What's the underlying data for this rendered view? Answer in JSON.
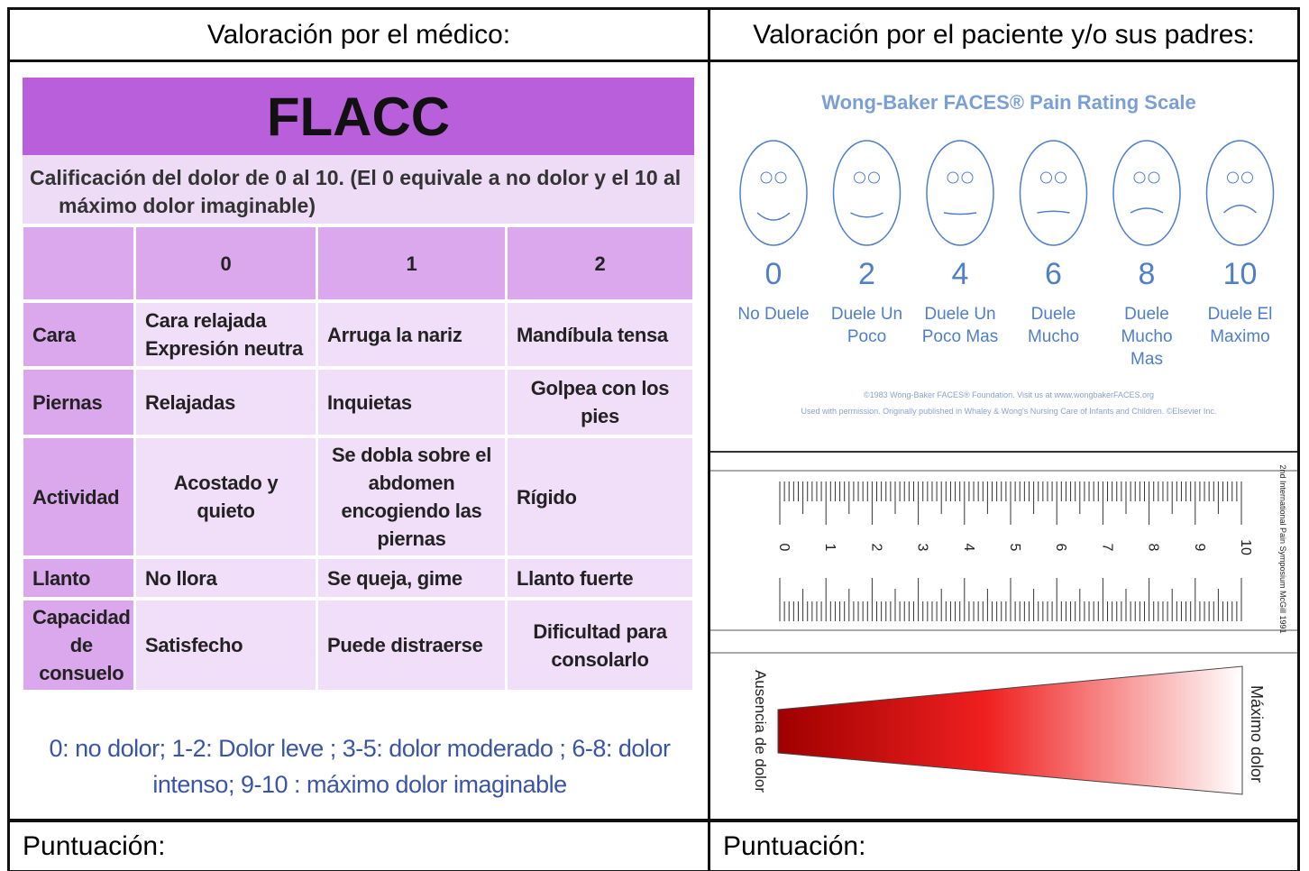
{
  "left": {
    "header": "Valoración por el médico:",
    "flacc": {
      "title": "FLACC",
      "subtitle": "Calificación del dolor de 0 al 10. (El 0 equivale a no dolor y el 10 al máximo dolor imaginable)",
      "columns": [
        "0",
        "1",
        "2"
      ],
      "rows": [
        [
          "Cara",
          "Cara relajada Expresión neutra",
          "Arruga la nariz",
          "Mandíbula tensa"
        ],
        [
          "Piernas",
          "Relajadas",
          "Inquietas",
          "Golpea con los pies"
        ],
        [
          "Actividad",
          "Acostado y quieto",
          "Se dobla sobre el abdomen encogiendo las piernas",
          "Rígido"
        ],
        [
          "Llanto",
          "No llora",
          "Se queja, gime",
          "Llanto fuerte"
        ],
        [
          "Capacidad de consuelo",
          "Satisfecho",
          "Puede distraerse",
          "Dificultad para consolarlo"
        ]
      ],
      "note": "0: no dolor; 1-2: Dolor leve ; 3-5: dolor moderado ; 6-8: dolor intenso; 9-10 : máximo dolor imaginable"
    },
    "footer": "Puntuación:"
  },
  "right": {
    "header": "Valoración por el paciente y/o sus padres:",
    "faces": {
      "title": "Wong-Baker FACES® Pain Rating Scale",
      "items": [
        {
          "score": 0,
          "label": "No Duele"
        },
        {
          "score": 2,
          "label": "Duele Un Poco"
        },
        {
          "score": 4,
          "label": "Duele Un Poco Mas"
        },
        {
          "score": 6,
          "label": "Duele Mucho"
        },
        {
          "score": 8,
          "label": "Duele Mucho Mas"
        },
        {
          "score": 10,
          "label": "Duele El Maximo"
        }
      ],
      "credit": [
        "©1983 Wong-Baker FACES® Foundation. Visit us at www.wongbakerFACES.org",
        "Used with permission. Originally published in Whaley & Wong's Nursing Care of Infants and Children. ©Elsevier Inc."
      ]
    },
    "ruler": {
      "labels": [
        0,
        1,
        2,
        3,
        4,
        5,
        6,
        7,
        8,
        9,
        10
      ],
      "side_note": "2nd International Pain Symposium McGill 1991"
    },
    "gradient": {
      "low": "Ausencia de dolor",
      "high": "Máximo dolor"
    },
    "footer": "Puntuación:"
  }
}
